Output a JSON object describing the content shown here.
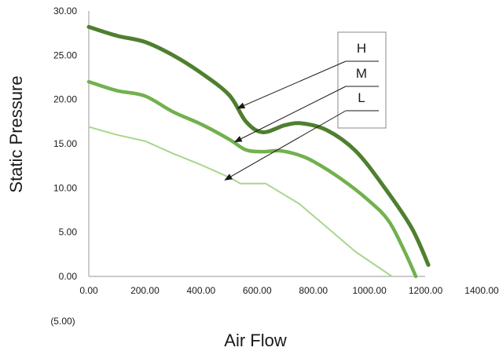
{
  "chart_data": {
    "type": "line",
    "title": "",
    "xlabel": "Air Flow",
    "ylabel": "Static Pressure",
    "xlim": [
      0,
      1400
    ],
    "ylim": [
      0,
      30
    ],
    "grid": false,
    "x_ticks": [
      "0.00",
      "200.00",
      "400.00",
      "600.00",
      "800.00",
      "1000.00",
      "1200.00",
      "1400.00"
    ],
    "y_ticks": [
      "0.00",
      "5.00",
      "10.00",
      "15.00",
      "20.00",
      "25.00",
      "30.00"
    ],
    "negative_label": "(5.00)",
    "negative_label_color": "#e03030",
    "legend": {
      "placement": "top-right",
      "entries": [
        "H",
        "M",
        "L"
      ]
    },
    "series": [
      {
        "name": "H",
        "color": "#4f7f2f",
        "x": [
          0,
          100,
          200,
          300,
          400,
          500,
          560,
          620,
          700,
          760,
          850,
          950,
          1050,
          1150,
          1210
        ],
        "y": [
          28.2,
          27.2,
          26.5,
          25.0,
          23.0,
          20.5,
          17.5,
          16.3,
          17.1,
          17.3,
          16.5,
          14.2,
          10.2,
          5.5,
          1.3
        ]
      },
      {
        "name": "M",
        "color": "#72b14e",
        "x": [
          0,
          100,
          200,
          300,
          400,
          500,
          560,
          620,
          680,
          740,
          800,
          900,
          1000,
          1070,
          1130,
          1165
        ],
        "y": [
          22.0,
          21.0,
          20.4,
          18.6,
          17.2,
          15.5,
          14.3,
          14.1,
          14.2,
          13.8,
          13.0,
          11.0,
          8.5,
          6.2,
          2.5,
          0
        ]
      },
      {
        "name": "L",
        "color": "#a9d68d",
        "x": [
          0,
          100,
          200,
          300,
          400,
          500,
          540,
          630,
          750,
          850,
          950,
          1080
        ],
        "y": [
          16.9,
          16.0,
          15.3,
          13.9,
          12.6,
          11.2,
          10.5,
          10.5,
          8.2,
          5.5,
          2.8,
          0
        ]
      }
    ]
  }
}
